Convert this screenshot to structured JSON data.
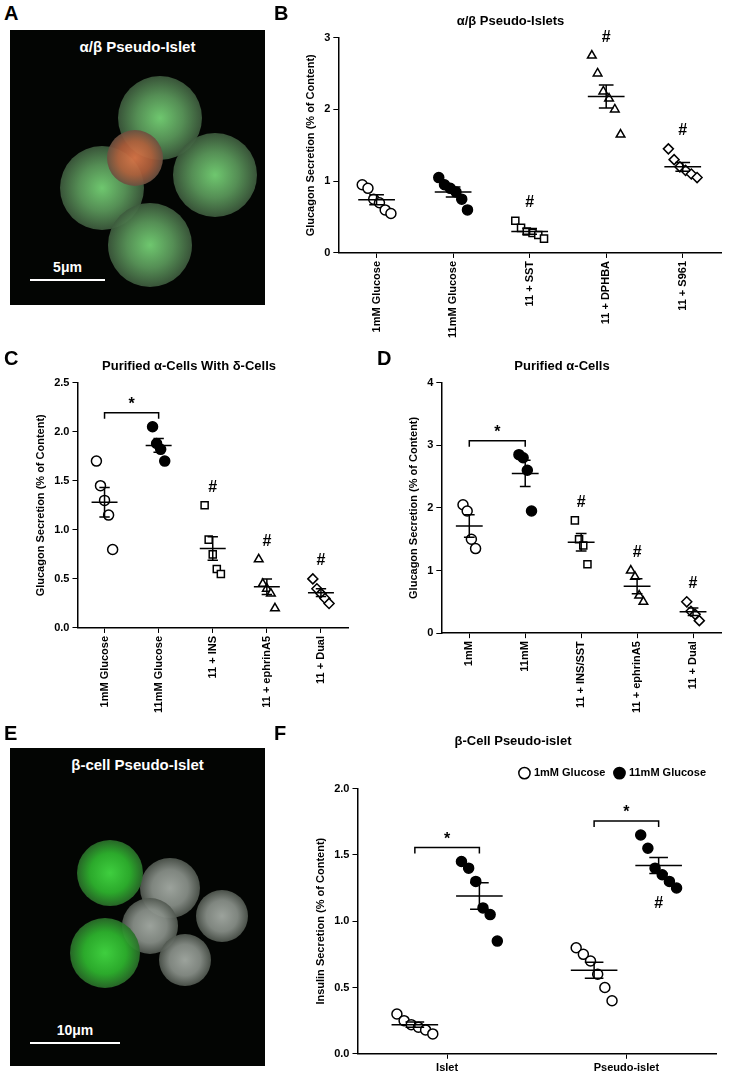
{
  "chart_data": [
    {
      "type": "image",
      "panel": "A",
      "title": "α/β Pseudo-Islet",
      "scale_bar": "5μm"
    },
    {
      "type": "scatter",
      "panel": "B",
      "title": "α/β Pseudo-Islets",
      "y_label": "Glucagon Secretion (% of Content)",
      "categories": [
        "1mM Glucose",
        "11mM Glucose",
        "11 + SST",
        "11 + DPHBA",
        "11 + S961"
      ],
      "values": [
        [
          0.95,
          0.9,
          0.75,
          0.7,
          0.6,
          0.55
        ],
        [
          1.05,
          0.95,
          0.9,
          0.85,
          0.75,
          0.6
        ],
        [
          0.45,
          0.35,
          0.3,
          0.28,
          0.25,
          0.2
        ],
        [
          2.75,
          2.5,
          2.25,
          2.15,
          2.0,
          1.65
        ],
        [
          1.45,
          1.3,
          1.2,
          1.15,
          1.1,
          1.05
        ]
      ],
      "mean": [
        0.74,
        0.85,
        0.3,
        2.18,
        1.2
      ],
      "sem": [
        0.07,
        0.07,
        0.04,
        0.16,
        0.06
      ],
      "marker": [
        "circle",
        "filled_circle",
        "square",
        "triangle",
        "diamond"
      ],
      "color": "#000000",
      "ylim": [
        0,
        3
      ],
      "yticks": [
        0,
        1,
        2,
        3
      ],
      "grid": false,
      "annotations": [
        {
          "text": "#",
          "category": "11 + SST"
        },
        {
          "text": "#",
          "category": "11 + DPHBA"
        },
        {
          "text": "#",
          "category": "11 + S961"
        }
      ]
    },
    {
      "type": "scatter",
      "panel": "C",
      "title": "Purified α-Cells With δ-Cells",
      "y_label": "Glucagon Secretion (% of Content)",
      "categories": [
        "1mM Glucose",
        "11mM Glucose",
        "11 + INS",
        "11 + ephrinA5",
        "11 + Dual"
      ],
      "values": [
        [
          1.7,
          1.45,
          1.3,
          1.15,
          0.8
        ],
        [
          2.05,
          1.88,
          1.82,
          1.7
        ],
        [
          1.25,
          0.9,
          0.75,
          0.6,
          0.55
        ],
        [
          0.7,
          0.45,
          0.4,
          0.35,
          0.2
        ],
        [
          0.5,
          0.4,
          0.35,
          0.3,
          0.25
        ]
      ],
      "mean": [
        1.28,
        1.86,
        0.81,
        0.42,
        0.36
      ],
      "sem": [
        0.15,
        0.07,
        0.12,
        0.08,
        0.04
      ],
      "marker": [
        "circle",
        "filled_circle",
        "square",
        "triangle",
        "diamond"
      ],
      "color": "#000000",
      "ylim": [
        0,
        2.5
      ],
      "yticks": [
        {
          "value": 0,
          "label": "0.0"
        },
        0.5,
        {
          "value": 1,
          "label": "1.0"
        },
        1.5,
        {
          "value": 2,
          "label": "2.0"
        },
        2.5
      ],
      "grid": false,
      "annotations": [
        {
          "text": "*",
          "from": "1mM Glucose",
          "to": "11mM Glucose"
        },
        {
          "text": "#",
          "category": "11 + INS"
        },
        {
          "text": "#",
          "category": "11 + ephrinA5"
        },
        {
          "text": "#",
          "category": "11 + Dual"
        }
      ]
    },
    {
      "type": "scatter",
      "panel": "D",
      "title": "Purified α-Cells",
      "y_label": "Glucagon Secretion (% of Content)",
      "categories": [
        "1mM",
        "11mM",
        "11 + INS/SST",
        "11 + ephrinA5",
        "11 + Dual"
      ],
      "values": [
        [
          2.05,
          1.95,
          1.5,
          1.35
        ],
        [
          2.85,
          2.8,
          2.6,
          1.95
        ],
        [
          1.8,
          1.5,
          1.4,
          1.1
        ],
        [
          1.0,
          0.9,
          0.6,
          0.5
        ],
        [
          0.5,
          0.35,
          0.3,
          0.2
        ]
      ],
      "mean": [
        1.71,
        2.55,
        1.45,
        0.75,
        0.34
      ],
      "sem": [
        0.18,
        0.21,
        0.14,
        0.12,
        0.06
      ],
      "marker": [
        "circle",
        "filled_circle",
        "square",
        "triangle",
        "diamond"
      ],
      "color": "#000000",
      "ylim": [
        0,
        4
      ],
      "yticks": [
        0,
        1,
        2,
        3,
        4
      ],
      "grid": false,
      "annotations": [
        {
          "text": "*",
          "from": "1mM",
          "to": "11mM"
        },
        {
          "text": "#",
          "category": "11 + INS/SST"
        },
        {
          "text": "#",
          "category": "11 + ephrinA5"
        },
        {
          "text": "#",
          "category": "11 + Dual"
        }
      ]
    },
    {
      "type": "image",
      "panel": "E",
      "title": "β-cell Pseudo-Islet",
      "scale_bar": "10μm"
    },
    {
      "type": "scatter",
      "panel": "F",
      "title": "β-Cell Pseudo-islet",
      "y_label": "Insulin Secretion (% of Content)",
      "categories": [
        "Islet",
        "Pseudo-islet"
      ],
      "series": [
        {
          "name": "1mM Glucose",
          "marker": "circle",
          "color": "#000000",
          "values": [
            [
              0.3,
              0.25,
              0.22,
              0.2,
              0.18,
              0.15
            ],
            [
              0.8,
              0.75,
              0.7,
              0.6,
              0.5,
              0.4
            ]
          ],
          "mean": [
            0.22,
            0.63
          ],
          "sem": [
            0.02,
            0.06
          ]
        },
        {
          "name": "11mM Glucose",
          "marker": "filled_circle",
          "color": "#000000",
          "values": [
            [
              1.45,
              1.4,
              1.3,
              1.1,
              1.05,
              0.85
            ],
            [
              1.65,
              1.55,
              1.4,
              1.35,
              1.3,
              1.25
            ]
          ],
          "mean": [
            1.19,
            1.42
          ],
          "sem": [
            0.1,
            0.06
          ]
        }
      ],
      "ylim": [
        0,
        2
      ],
      "yticks": [
        {
          "value": 0,
          "label": "0.0"
        },
        0.5,
        {
          "value": 1,
          "label": "1.0"
        },
        1.5,
        {
          "value": 2,
          "label": "2.0"
        }
      ],
      "grid": false,
      "legend": "upper right",
      "annotations": [
        {
          "text": "*",
          "category": "Islet",
          "from": "1mM Glucose",
          "to": "11mM Glucose"
        },
        {
          "text": "*",
          "category": "Pseudo-islet",
          "from": "1mM Glucose",
          "to": "11mM Glucose"
        },
        {
          "text": "#",
          "category": "Pseudo-islet",
          "series": "11mM Glucose"
        }
      ]
    }
  ]
}
